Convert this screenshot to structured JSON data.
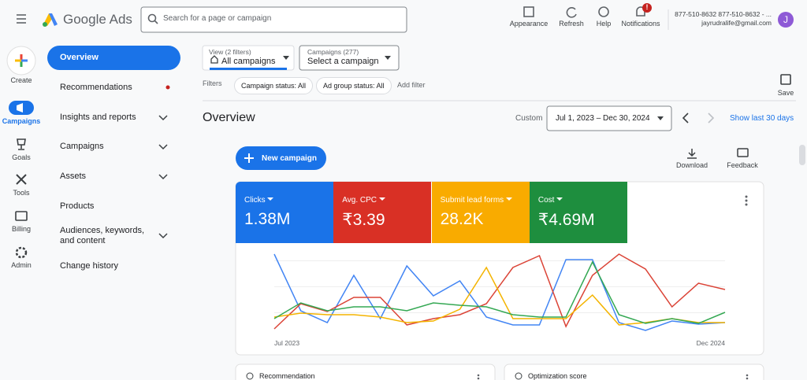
{
  "header": {
    "app_name": "Google Ads",
    "search_placeholder": "Search for a page or campaign",
    "actions": [
      "Appearance",
      "Refresh",
      "Help",
      "Notifications"
    ],
    "notification_badge": "!",
    "account_line": "877-510-8632 877-510-8632 - ...",
    "email": "jayrudralife@gmail.com",
    "avatar": "J"
  },
  "rail": [
    "Create",
    "Campaigns",
    "Goals",
    "Tools",
    "Billing",
    "Admin"
  ],
  "nav": [
    "Overview",
    "Recommendations",
    "Insights and reports",
    "Campaigns",
    "Assets",
    "Products",
    "Audiences, keywords, and content",
    "Change history"
  ],
  "view_selector": {
    "label": "View (2 filters)",
    "value": "All campaigns"
  },
  "campaign_selector": {
    "label": "Campaigns (277)",
    "value": "Select a campaign"
  },
  "filters": {
    "label": "Filters",
    "chips": [
      "Campaign status: All",
      "Ad group status: All"
    ],
    "add": "Add filter",
    "save": "Save"
  },
  "page_title": "Overview",
  "date_range": {
    "label": "Custom",
    "value": "Jul 1, 2023 – Dec 30, 2024",
    "shortcut": "Show last 30 days"
  },
  "new_campaign": "New campaign",
  "tools": [
    "Download",
    "Feedback"
  ],
  "metrics": [
    {
      "name": "Clicks",
      "value": "1.38M",
      "color": "#1a73e8"
    },
    {
      "name": "Avg. CPC",
      "value": "₹3.39",
      "color": "#d93025"
    },
    {
      "name": "Submit lead forms",
      "value": "28.2K",
      "color": "#f9ab00"
    },
    {
      "name": "Cost",
      "value": "₹4.69M",
      "color": "#1e8e3e"
    }
  ],
  "chart_data": {
    "type": "line",
    "categories": [
      "Jul 2023",
      null,
      null,
      null,
      null,
      null,
      null,
      null,
      null,
      null,
      null,
      null,
      null,
      null,
      null,
      null,
      null,
      "Dec 2024"
    ],
    "ylim": [
      0,
      110
    ],
    "series": [
      {
        "name": "Clicks",
        "color": "#4285f4",
        "values": [
          102,
          30,
          15,
          75,
          20,
          87,
          49,
          68,
          22,
          12,
          12,
          95,
          95,
          15,
          5,
          17,
          13,
          15
        ]
      },
      {
        "name": "Avg. CPC",
        "color": "#db4437",
        "values": [
          7,
          39,
          29,
          47,
          47,
          12,
          20,
          25,
          39,
          85,
          100,
          10,
          75,
          102,
          83,
          35,
          65,
          57
        ]
      },
      {
        "name": "Submit lead forms",
        "color": "#f4b400",
        "values": [
          22,
          27,
          25,
          25,
          22,
          15,
          17,
          32,
          85,
          20,
          20,
          20,
          50,
          12,
          15,
          20,
          15,
          15
        ]
      },
      {
        "name": "Cost",
        "color": "#34a853",
        "values": [
          20,
          40,
          30,
          35,
          35,
          30,
          40,
          37,
          35,
          25,
          22,
          22,
          92,
          25,
          14,
          20,
          14,
          28
        ]
      }
    ]
  },
  "cards": [
    "Recommendation",
    "Optimization score"
  ]
}
